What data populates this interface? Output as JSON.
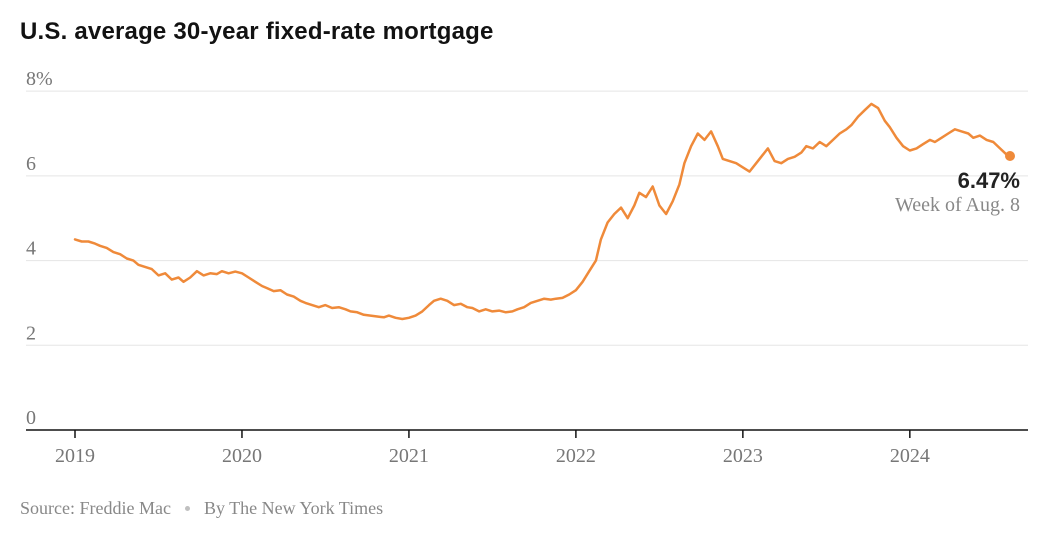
{
  "title": "U.S. average 30-year fixed-rate mortgage",
  "source_prefix": "Source: ",
  "source_name": "Freddie Mac",
  "byline": "By The New York Times",
  "callout": {
    "value": "6.47%",
    "label": "Week of Aug. 8"
  },
  "chart": {
    "type": "line",
    "background_color": "#ffffff",
    "line_color": "#ef8a3a",
    "line_width": 2.5,
    "end_dot_radius": 5,
    "grid_color": "#e5e5e5",
    "grid_width": 1,
    "axis_color": "#121212",
    "axis_width": 1.5,
    "tick_font_size": 20,
    "tick_font_family": "Georgia, 'Times New Roman', serif",
    "tick_color": "#777777",
    "ylim": [
      0,
      8.5
    ],
    "yticks": [
      0,
      2,
      4,
      6,
      8
    ],
    "ytick_labels": [
      "0",
      "2",
      "4",
      "6",
      "8%"
    ],
    "x_start": 2019.0,
    "x_end": 2024.6,
    "xticks": [
      2019,
      2020,
      2021,
      2022,
      2023,
      2024
    ],
    "xtick_labels": [
      "2019",
      "2020",
      "2021",
      "2022",
      "2023",
      "2024"
    ],
    "series": [
      [
        2019.0,
        4.5
      ],
      [
        2019.04,
        4.45
      ],
      [
        2019.08,
        4.45
      ],
      [
        2019.12,
        4.4
      ],
      [
        2019.15,
        4.35
      ],
      [
        2019.19,
        4.3
      ],
      [
        2019.23,
        4.2
      ],
      [
        2019.27,
        4.15
      ],
      [
        2019.31,
        4.05
      ],
      [
        2019.35,
        4.0
      ],
      [
        2019.38,
        3.9
      ],
      [
        2019.42,
        3.85
      ],
      [
        2019.46,
        3.8
      ],
      [
        2019.5,
        3.65
      ],
      [
        2019.54,
        3.7
      ],
      [
        2019.58,
        3.55
      ],
      [
        2019.62,
        3.6
      ],
      [
        2019.65,
        3.5
      ],
      [
        2019.69,
        3.6
      ],
      [
        2019.73,
        3.75
      ],
      [
        2019.77,
        3.65
      ],
      [
        2019.81,
        3.7
      ],
      [
        2019.85,
        3.68
      ],
      [
        2019.88,
        3.75
      ],
      [
        2019.92,
        3.7
      ],
      [
        2019.96,
        3.74
      ],
      [
        2020.0,
        3.7
      ],
      [
        2020.04,
        3.6
      ],
      [
        2020.08,
        3.5
      ],
      [
        2020.12,
        3.4
      ],
      [
        2020.15,
        3.35
      ],
      [
        2020.19,
        3.28
      ],
      [
        2020.23,
        3.3
      ],
      [
        2020.27,
        3.2
      ],
      [
        2020.31,
        3.15
      ],
      [
        2020.35,
        3.05
      ],
      [
        2020.38,
        3.0
      ],
      [
        2020.42,
        2.95
      ],
      [
        2020.46,
        2.9
      ],
      [
        2020.5,
        2.95
      ],
      [
        2020.54,
        2.88
      ],
      [
        2020.58,
        2.9
      ],
      [
        2020.62,
        2.85
      ],
      [
        2020.65,
        2.8
      ],
      [
        2020.69,
        2.78
      ],
      [
        2020.73,
        2.72
      ],
      [
        2020.77,
        2.7
      ],
      [
        2020.81,
        2.68
      ],
      [
        2020.85,
        2.66
      ],
      [
        2020.88,
        2.7
      ],
      [
        2020.92,
        2.65
      ],
      [
        2020.96,
        2.62
      ],
      [
        2021.0,
        2.65
      ],
      [
        2021.04,
        2.7
      ],
      [
        2021.08,
        2.8
      ],
      [
        2021.12,
        2.95
      ],
      [
        2021.15,
        3.05
      ],
      [
        2021.19,
        3.1
      ],
      [
        2021.23,
        3.05
      ],
      [
        2021.27,
        2.95
      ],
      [
        2021.31,
        2.98
      ],
      [
        2021.35,
        2.9
      ],
      [
        2021.38,
        2.88
      ],
      [
        2021.42,
        2.8
      ],
      [
        2021.46,
        2.85
      ],
      [
        2021.5,
        2.8
      ],
      [
        2021.54,
        2.82
      ],
      [
        2021.58,
        2.78
      ],
      [
        2021.62,
        2.8
      ],
      [
        2021.65,
        2.85
      ],
      [
        2021.69,
        2.9
      ],
      [
        2021.73,
        3.0
      ],
      [
        2021.77,
        3.05
      ],
      [
        2021.81,
        3.1
      ],
      [
        2021.85,
        3.08
      ],
      [
        2021.88,
        3.1
      ],
      [
        2021.92,
        3.12
      ],
      [
        2021.96,
        3.2
      ],
      [
        2022.0,
        3.3
      ],
      [
        2022.04,
        3.5
      ],
      [
        2022.08,
        3.75
      ],
      [
        2022.12,
        4.0
      ],
      [
        2022.15,
        4.5
      ],
      [
        2022.19,
        4.9
      ],
      [
        2022.23,
        5.1
      ],
      [
        2022.27,
        5.25
      ],
      [
        2022.31,
        5.0
      ],
      [
        2022.35,
        5.3
      ],
      [
        2022.38,
        5.6
      ],
      [
        2022.42,
        5.5
      ],
      [
        2022.46,
        5.75
      ],
      [
        2022.5,
        5.3
      ],
      [
        2022.54,
        5.1
      ],
      [
        2022.58,
        5.4
      ],
      [
        2022.62,
        5.8
      ],
      [
        2022.65,
        6.3
      ],
      [
        2022.69,
        6.7
      ],
      [
        2022.73,
        7.0
      ],
      [
        2022.77,
        6.85
      ],
      [
        2022.81,
        7.05
      ],
      [
        2022.85,
        6.7
      ],
      [
        2022.88,
        6.4
      ],
      [
        2022.92,
        6.35
      ],
      [
        2022.96,
        6.3
      ],
      [
        2023.0,
        6.2
      ],
      [
        2023.04,
        6.1
      ],
      [
        2023.08,
        6.3
      ],
      [
        2023.12,
        6.5
      ],
      [
        2023.15,
        6.65
      ],
      [
        2023.19,
        6.35
      ],
      [
        2023.23,
        6.3
      ],
      [
        2023.27,
        6.4
      ],
      [
        2023.31,
        6.45
      ],
      [
        2023.35,
        6.55
      ],
      [
        2023.38,
        6.7
      ],
      [
        2023.42,
        6.65
      ],
      [
        2023.46,
        6.8
      ],
      [
        2023.5,
        6.7
      ],
      [
        2023.54,
        6.85
      ],
      [
        2023.58,
        7.0
      ],
      [
        2023.62,
        7.1
      ],
      [
        2023.65,
        7.2
      ],
      [
        2023.69,
        7.4
      ],
      [
        2023.73,
        7.55
      ],
      [
        2023.77,
        7.7
      ],
      [
        2023.81,
        7.6
      ],
      [
        2023.85,
        7.3
      ],
      [
        2023.88,
        7.15
      ],
      [
        2023.92,
        6.9
      ],
      [
        2023.96,
        6.7
      ],
      [
        2024.0,
        6.6
      ],
      [
        2024.04,
        6.65
      ],
      [
        2024.08,
        6.75
      ],
      [
        2024.12,
        6.85
      ],
      [
        2024.15,
        6.8
      ],
      [
        2024.19,
        6.9
      ],
      [
        2024.23,
        7.0
      ],
      [
        2024.27,
        7.1
      ],
      [
        2024.31,
        7.05
      ],
      [
        2024.35,
        7.0
      ],
      [
        2024.38,
        6.9
      ],
      [
        2024.42,
        6.95
      ],
      [
        2024.46,
        6.85
      ],
      [
        2024.5,
        6.8
      ],
      [
        2024.54,
        6.65
      ],
      [
        2024.58,
        6.5
      ],
      [
        2024.6,
        6.47
      ]
    ]
  }
}
